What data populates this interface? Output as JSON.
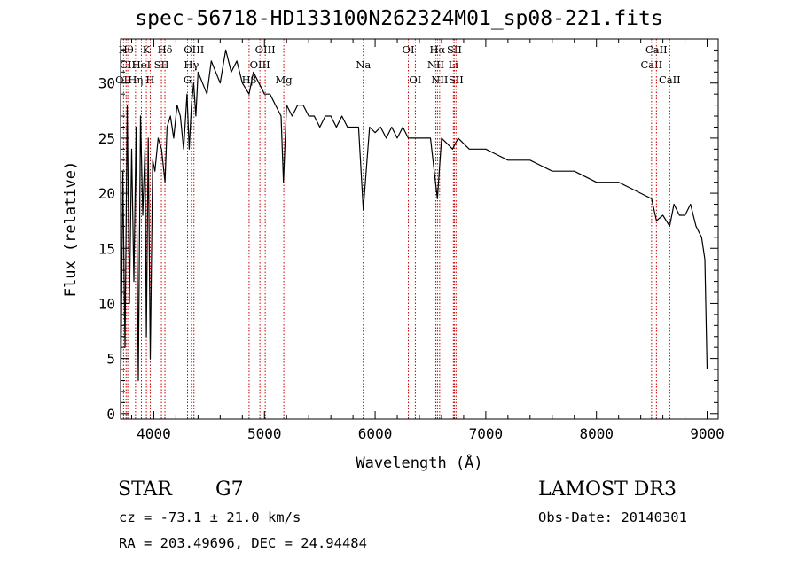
{
  "chart_data": {
    "type": "line",
    "title": "spec-56718-HD133100N262324M01_sp08-221.fits",
    "xlabel": "Wavelength (Å)",
    "ylabel": "Flux (relative)",
    "xlim": [
      3700,
      9100
    ],
    "ylim": [
      -0.5,
      34
    ],
    "xticks": [
      4000,
      5000,
      6000,
      7000,
      8000,
      9000
    ],
    "yticks": [
      0,
      5,
      10,
      15,
      20,
      25,
      30
    ],
    "series": [
      {
        "name": "flux",
        "x": [
          3700,
          3720,
          3740,
          3760,
          3780,
          3800,
          3820,
          3840,
          3860,
          3880,
          3900,
          3920,
          3933,
          3950,
          3968,
          3990,
          4010,
          4040,
          4070,
          4101,
          4120,
          4150,
          4180,
          4210,
          4240,
          4270,
          4300,
          4320,
          4340,
          4360,
          4380,
          4400,
          4440,
          4480,
          4520,
          4560,
          4600,
          4650,
          4700,
          4750,
          4800,
          4861,
          4900,
          4950,
          5000,
          5050,
          5100,
          5150,
          5172,
          5200,
          5250,
          5300,
          5350,
          5400,
          5450,
          5500,
          5550,
          5600,
          5650,
          5700,
          5750,
          5800,
          5850,
          5893,
          5950,
          6000,
          6050,
          6100,
          6150,
          6200,
          6250,
          6300,
          6350,
          6400,
          6450,
          6500,
          6563,
          6600,
          6650,
          6700,
          6750,
          6800,
          6850,
          6900,
          6950,
          7000,
          7100,
          7200,
          7300,
          7400,
          7500,
          7600,
          7700,
          7800,
          7900,
          8000,
          8100,
          8200,
          8300,
          8400,
          8498,
          8542,
          8600,
          8662,
          8700,
          8750,
          8800,
          8850,
          8900,
          8950,
          8980,
          9000
        ],
        "values": [
          0.5,
          22,
          6,
          28,
          10,
          24,
          12,
          26,
          3,
          27,
          18,
          24,
          7,
          25,
          5,
          23,
          22,
          25,
          24,
          21,
          26,
          27,
          25,
          28,
          27,
          24,
          29,
          24,
          28,
          30,
          27,
          31,
          30,
          29,
          32,
          31,
          30,
          33,
          31,
          32,
          30,
          29,
          31,
          30,
          29,
          29,
          28,
          27,
          21,
          28,
          27,
          28,
          28,
          27,
          27,
          26,
          27,
          27,
          26,
          27,
          26,
          26,
          26,
          18.5,
          26,
          25.5,
          26,
          25,
          26,
          25,
          26,
          25,
          25,
          25,
          25,
          25,
          19.5,
          25,
          24.5,
          24,
          25,
          24.5,
          24,
          24,
          24,
          24,
          23.5,
          23,
          23,
          23,
          22.5,
          22,
          22,
          22,
          21.5,
          21,
          21,
          21,
          20.5,
          20,
          19.5,
          17.5,
          18,
          17,
          19,
          18,
          18,
          19,
          17,
          16,
          14,
          4
        ]
      }
    ],
    "lines": [
      {
        "label": "OII",
        "wave": 3727,
        "row": 3
      },
      {
        "label": "Hθ",
        "wave": 3750,
        "row": 1
      },
      {
        "label": "CII",
        "wave": 3765,
        "row": 2
      },
      {
        "label": "Hη",
        "wave": 3835,
        "row": 3
      },
      {
        "label": "HeI",
        "wave": 3888,
        "row": 2
      },
      {
        "label": "K",
        "wave": 3933,
        "row": 1
      },
      {
        "label": "H",
        "wave": 3968,
        "row": 3
      },
      {
        "label": "SII",
        "wave": 4069,
        "row": 2
      },
      {
        "label": "Hδ",
        "wave": 4101,
        "row": 1
      },
      {
        "label": "G",
        "wave": 4305,
        "row": 3
      },
      {
        "label": "Hγ",
        "wave": 4340,
        "row": 2
      },
      {
        "label": "OIII",
        "wave": 4363,
        "row": 1
      },
      {
        "label": "Hβ",
        "wave": 4861,
        "row": 3
      },
      {
        "label": "OIII",
        "wave": 4959,
        "row": 2
      },
      {
        "label": "OIII",
        "wave": 5007,
        "row": 1
      },
      {
        "label": "Mg",
        "wave": 5175,
        "row": 3
      },
      {
        "label": "Na",
        "wave": 5893,
        "row": 2
      },
      {
        "label": "OI",
        "wave": 6300,
        "row": 1
      },
      {
        "label": "OI",
        "wave": 6363,
        "row": 3
      },
      {
        "label": "NII",
        "wave": 6548,
        "row": 2
      },
      {
        "label": "Hα",
        "wave": 6563,
        "row": 1
      },
      {
        "label": "NII",
        "wave": 6583,
        "row": 3
      },
      {
        "label": "Li",
        "wave": 6707,
        "row": 2
      },
      {
        "label": "SII",
        "wave": 6716,
        "row": 1
      },
      {
        "label": "SII",
        "wave": 6731,
        "row": 3
      },
      {
        "label": "CaII",
        "wave": 8498,
        "row": 2
      },
      {
        "label": "CaII",
        "wave": 8542,
        "row": 1
      },
      {
        "label": "CaII",
        "wave": 8662,
        "row": 3
      }
    ]
  },
  "info": {
    "object_class": "STAR",
    "subclass": "G7",
    "survey": "LAMOST DR3",
    "redshift": "cz = -73.1 ± 21.0 km/s",
    "obs_date": "Obs-Date: 20140301",
    "coords": "RA = 203.49696, DEC =  24.94484"
  },
  "colors": {
    "spectrum": "#000000",
    "line_marker": "#cc0000",
    "axis": "#000000"
  }
}
